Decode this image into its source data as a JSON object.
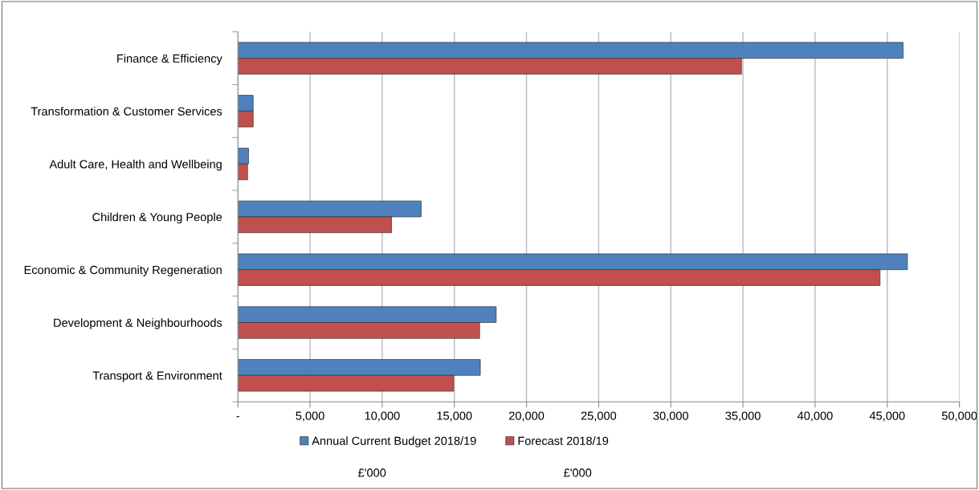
{
  "chart_data": {
    "type": "bar",
    "orientation": "horizontal",
    "categories": [
      "Finance & Efficiency",
      "Transformation & Customer Services",
      "Adult Care, Health and Wellbeing",
      "Children & Young People",
      "Economic & Community Regeneration",
      "Development & Neighbourhoods",
      "Transport & Environment"
    ],
    "series": [
      {
        "name": "Annual Current Budget 2018/19",
        "color": "#4f81bd",
        "values": [
          46100,
          1060,
          740,
          12700,
          46400,
          17900,
          16800
        ]
      },
      {
        "name": "Forecast 2018/19",
        "color": "#c0504d",
        "values": [
          34900,
          1060,
          670,
          10650,
          44500,
          16750,
          14950
        ]
      }
    ],
    "xlim": [
      0,
      50000
    ],
    "xticks": [
      {
        "value": 0,
        "label": "-"
      },
      {
        "value": 5000,
        "label": "5,000"
      },
      {
        "value": 10000,
        "label": "10,000"
      },
      {
        "value": 15000,
        "label": "15,000"
      },
      {
        "value": 20000,
        "label": "20,000"
      },
      {
        "value": 25000,
        "label": "25,000"
      },
      {
        "value": 30000,
        "label": "30,000"
      },
      {
        "value": 35000,
        "label": "35,000"
      },
      {
        "value": 40000,
        "label": "40,000"
      },
      {
        "value": 45000,
        "label": "45,000"
      },
      {
        "value": 50000,
        "label": "50,000"
      }
    ],
    "grid": "x",
    "legend": "bottom",
    "annotations": [
      "£'000",
      "£'000"
    ]
  }
}
